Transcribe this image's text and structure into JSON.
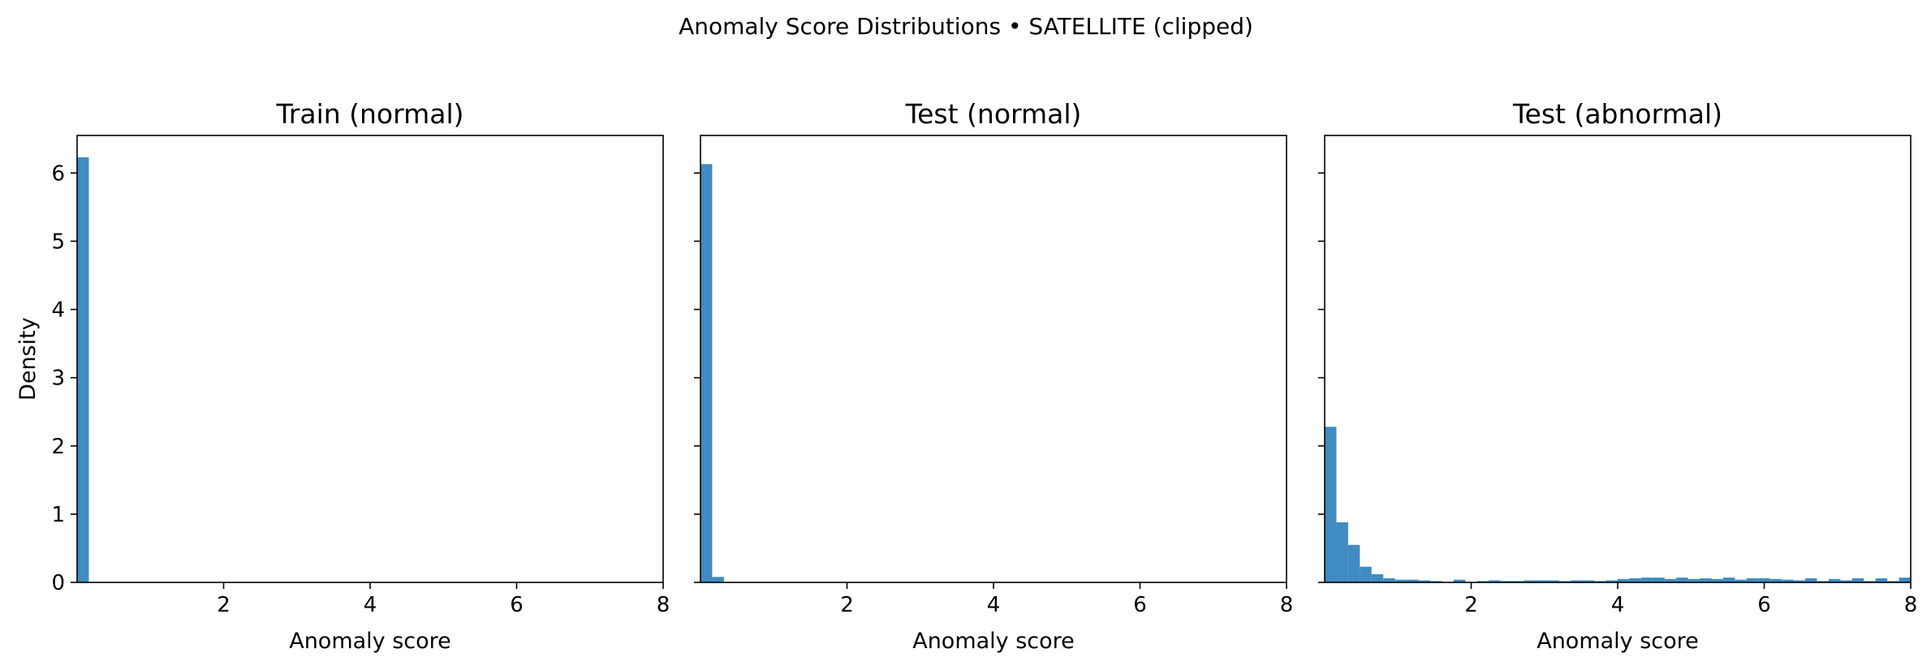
{
  "figure_title": "Anomaly Score Distributions • SATELLITE (clipped)",
  "chart_data": [
    {
      "type": "bar",
      "title": "Train (normal)",
      "xlabel": "Anomaly score",
      "ylabel": "Density",
      "xlim": [
        0,
        8
      ],
      "ylim": [
        0,
        6.55
      ],
      "xticks": [
        "2",
        "4",
        "6",
        "8"
      ],
      "yticks": [
        "0",
        "1",
        "2",
        "3",
        "4",
        "5",
        "6"
      ],
      "show_ytick_labels": true,
      "grid": false,
      "color": "#3f8bc2",
      "bin_width": 0.16,
      "values": [
        6.23
      ]
    },
    {
      "type": "bar",
      "title": "Test (normal)",
      "xlabel": "Anomaly score",
      "ylabel": "",
      "xlim": [
        0,
        8
      ],
      "ylim": [
        0,
        6.55
      ],
      "xticks": [
        "2",
        "4",
        "6",
        "8"
      ],
      "yticks": [
        "0",
        "1",
        "2",
        "3",
        "4",
        "5",
        "6"
      ],
      "show_ytick_labels": false,
      "grid": false,
      "color": "#3f8bc2",
      "bin_width": 0.16,
      "values": [
        6.13,
        0.08
      ]
    },
    {
      "type": "bar",
      "title": "Test (abnormal)",
      "xlabel": "Anomaly score",
      "ylabel": "",
      "xlim": [
        0,
        8
      ],
      "ylim": [
        0,
        6.55
      ],
      "xticks": [
        "2",
        "4",
        "6",
        "8"
      ],
      "yticks": [
        "0",
        "1",
        "2",
        "3",
        "4",
        "5",
        "6"
      ],
      "show_ytick_labels": false,
      "grid": false,
      "color": "#3f8bc2",
      "bin_width": 0.16,
      "values": [
        2.28,
        0.88,
        0.55,
        0.23,
        0.12,
        0.06,
        0.04,
        0.04,
        0.03,
        0.02,
        0.0,
        0.04,
        0.0,
        0.02,
        0.03,
        0.02,
        0.02,
        0.03,
        0.03,
        0.03,
        0.02,
        0.03,
        0.03,
        0.02,
        0.03,
        0.05,
        0.06,
        0.07,
        0.07,
        0.05,
        0.07,
        0.05,
        0.06,
        0.05,
        0.07,
        0.04,
        0.06,
        0.06,
        0.05,
        0.04,
        0.03,
        0.06,
        0.02,
        0.05,
        0.03,
        0.06,
        0.02,
        0.06,
        0.02,
        0.07
      ]
    }
  ]
}
